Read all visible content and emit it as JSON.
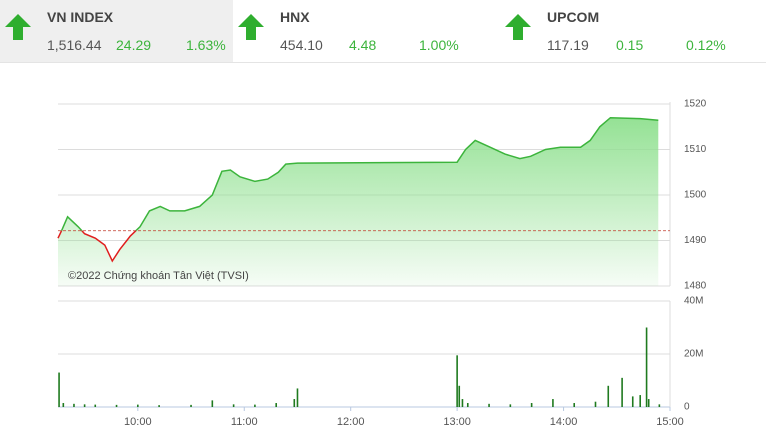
{
  "tickers": [
    {
      "name": "VN INDEX",
      "value": "1,516.44",
      "change": "24.29",
      "percent": "1.63%"
    },
    {
      "name": "HNX",
      "value": "454.10",
      "change": "4.48",
      "percent": "1.00%"
    },
    {
      "name": "UPCOM",
      "value": "117.19",
      "change": "0.15",
      "percent": "0.12%"
    }
  ],
  "chart_data": [
    {
      "type": "line",
      "annotation": "©2022 Chứng khoán Tân Việt (TVSI)",
      "x": [
        9.25,
        9.29,
        9.34,
        9.44,
        9.5,
        9.6,
        9.69,
        9.76,
        9.83,
        9.93,
        10.02,
        10.11,
        10.21,
        10.3,
        10.44,
        10.58,
        10.7,
        10.79,
        10.87,
        10.96,
        11.1,
        11.22,
        11.32,
        11.39,
        11.5,
        13.0,
        13.08,
        13.17,
        13.31,
        13.45,
        13.59,
        13.69,
        13.83,
        13.97,
        14.16,
        14.25,
        14.34,
        14.44,
        14.72,
        14.89
      ],
      "values": [
        1490.5,
        1492.5,
        1495.2,
        1493,
        1491.5,
        1490.5,
        1489,
        1485.5,
        1488,
        1491,
        1493,
        1496.5,
        1497.5,
        1496.5,
        1496.5,
        1497.5,
        1500,
        1505.2,
        1505.5,
        1504,
        1503,
        1503.5,
        1505,
        1506.8,
        1507,
        1507.2,
        1510,
        1512,
        1510.5,
        1509,
        1508,
        1508.5,
        1510,
        1510.5,
        1510.5,
        1512,
        1515,
        1517,
        1516.8,
        1516.44
      ],
      "color": "#3cb43c",
      "down_color": "#e01e1e",
      "fill_color": "#8fe08f",
      "reference": 1492.15,
      "xlim": [
        9.25,
        15
      ],
      "ylim": [
        1480,
        1520
      ],
      "yticks": [
        1480,
        1490,
        1500,
        1510,
        1520
      ],
      "grid": true
    },
    {
      "type": "bar",
      "x": [
        9.26,
        9.3,
        9.4,
        9.5,
        9.6,
        9.8,
        10.0,
        10.2,
        10.5,
        10.7,
        10.9,
        11.1,
        11.3,
        11.47,
        11.5,
        13.0,
        13.02,
        13.05,
        13.1,
        13.3,
        13.5,
        13.7,
        13.9,
        14.1,
        14.3,
        14.42,
        14.55,
        14.65,
        14.72,
        14.78,
        14.8,
        14.9
      ],
      "values": [
        13000000,
        1500000,
        1200000,
        1000000,
        900000,
        800000,
        900000,
        700000,
        800000,
        2500000,
        1000000,
        900000,
        1500000,
        3000000,
        7000000,
        19500000,
        8000000,
        3000000,
        1500000,
        1200000,
        1000000,
        1500000,
        3000000,
        1500000,
        2000000,
        8000000,
        11000000,
        4000000,
        4500000,
        30000000,
        3000000,
        1000000
      ],
      "color": "#1f7a1f",
      "xlim": [
        9.25,
        15
      ],
      "xticks": [
        {
          "value": 10,
          "label": "10:00"
        },
        {
          "value": 11,
          "label": "11:00"
        },
        {
          "value": 12,
          "label": "12:00"
        },
        {
          "value": 13,
          "label": "13:00"
        },
        {
          "value": 14,
          "label": "14:00"
        },
        {
          "value": 15,
          "label": "15:00"
        }
      ],
      "ylim": [
        0,
        40000000
      ],
      "yticks": [
        {
          "value": 0,
          "label": "0"
        },
        {
          "value": 20000000,
          "label": "20M"
        },
        {
          "value": 40000000,
          "label": "40M"
        }
      ],
      "grid": true
    }
  ]
}
